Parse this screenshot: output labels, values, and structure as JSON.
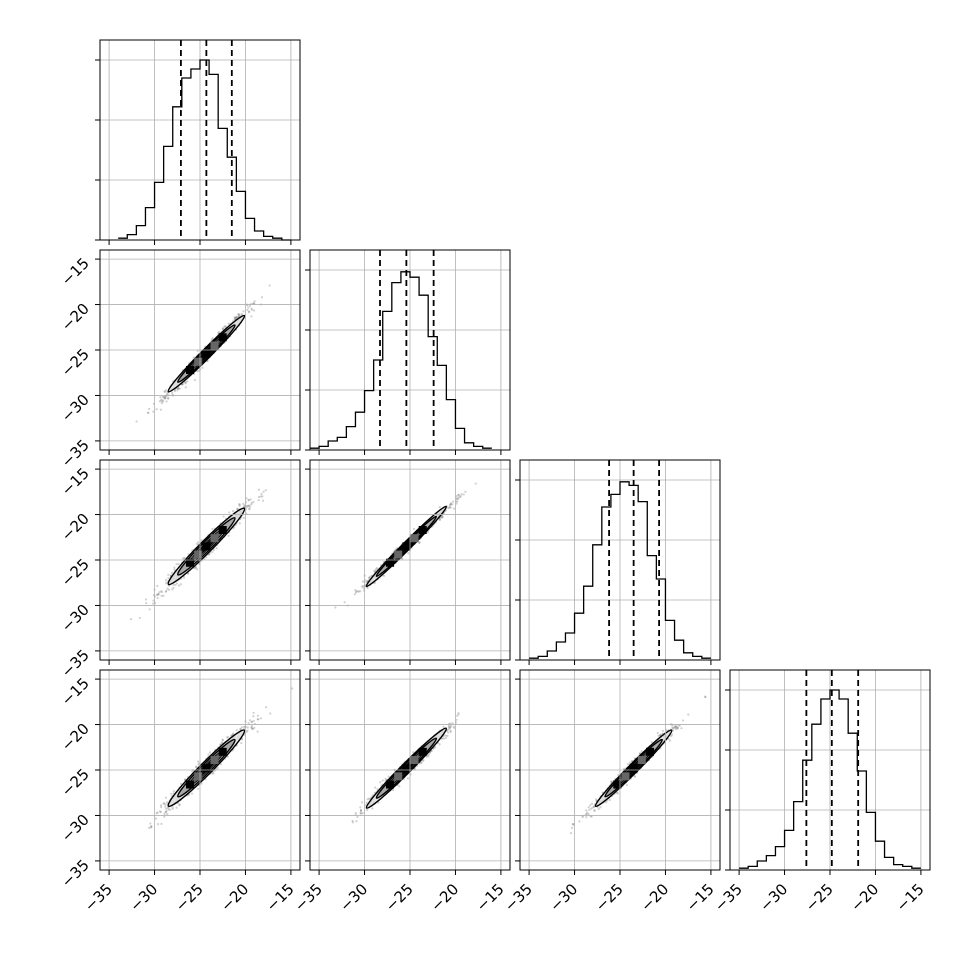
{
  "chart_data": {
    "type": "corner",
    "n_params": 4,
    "axis_range": [
      -36,
      -14
    ],
    "ticks": [
      -35,
      -30,
      -25,
      -20,
      -15
    ],
    "tick_labels": [
      "−35",
      "−30",
      "−25",
      "−20",
      "−15"
    ],
    "grid": true,
    "histograms": [
      {
        "param": 1,
        "bin_edges": [
          -34,
          -33,
          -32,
          -31,
          -30,
          -29,
          -28,
          -27,
          -26,
          -25,
          -24,
          -23,
          -22,
          -21,
          -20,
          -19,
          -18,
          -17,
          -16,
          -15
        ],
        "counts": [
          0.01,
          0.03,
          0.08,
          0.18,
          0.32,
          0.52,
          0.74,
          0.9,
          0.95,
          1.0,
          0.92,
          0.62,
          0.46,
          0.27,
          0.12,
          0.05,
          0.02,
          0.01,
          0.0
        ],
        "quantiles": [
          -27.1,
          -24.3,
          -21.5
        ]
      },
      {
        "param": 2,
        "bin_edges": [
          -36,
          -35,
          -34,
          -33,
          -32,
          -31,
          -30,
          -29,
          -28,
          -27,
          -26,
          -25,
          -24,
          -23,
          -22,
          -21,
          -20,
          -19,
          -18,
          -17,
          -16
        ],
        "counts": [
          0.01,
          0.02,
          0.05,
          0.07,
          0.13,
          0.21,
          0.33,
          0.5,
          0.77,
          0.93,
          0.99,
          0.96,
          0.86,
          0.63,
          0.47,
          0.28,
          0.12,
          0.04,
          0.02,
          0.01
        ],
        "quantiles": [
          -28.3,
          -25.4,
          -22.4
        ]
      },
      {
        "param": 3,
        "bin_edges": [
          -35,
          -34,
          -33,
          -32,
          -31,
          -30,
          -29,
          -28,
          -27,
          -26,
          -25,
          -24,
          -23,
          -22,
          -21,
          -20,
          -19,
          -18,
          -17,
          -16,
          -15
        ],
        "counts": [
          0.01,
          0.02,
          0.05,
          0.1,
          0.15,
          0.26,
          0.41,
          0.64,
          0.85,
          0.92,
          0.99,
          0.97,
          0.88,
          0.58,
          0.45,
          0.22,
          0.11,
          0.04,
          0.02,
          0.01
        ],
        "quantiles": [
          -26.2,
          -23.5,
          -20.7
        ]
      },
      {
        "param": 4,
        "bin_edges": [
          -35,
          -34,
          -33,
          -32,
          -31,
          -30,
          -29,
          -28,
          -27,
          -26,
          -25,
          -24,
          -23,
          -22,
          -21,
          -20,
          -19,
          -18,
          -17,
          -16,
          -15
        ],
        "counts": [
          0.01,
          0.02,
          0.05,
          0.08,
          0.13,
          0.22,
          0.38,
          0.61,
          0.81,
          0.95,
          1.0,
          0.95,
          0.76,
          0.55,
          0.32,
          0.16,
          0.07,
          0.03,
          0.02,
          0.01
        ],
        "quantiles": [
          -27.6,
          -24.8,
          -21.9
        ]
      }
    ],
    "scatter_panels": [
      {
        "x_param": 1,
        "y_param": 2,
        "center": [
          -24.3,
          -25.4
        ],
        "sd": [
          2.1,
          2.2
        ],
        "rho": 0.985
      },
      {
        "x_param": 1,
        "y_param": 3,
        "center": [
          -24.3,
          -23.5
        ],
        "sd": [
          2.1,
          2.1
        ],
        "rho": 0.975
      },
      {
        "x_param": 2,
        "y_param": 3,
        "center": [
          -25.4,
          -23.5
        ],
        "sd": [
          2.2,
          2.1
        ],
        "rho": 0.99
      },
      {
        "x_param": 1,
        "y_param": 4,
        "center": [
          -24.3,
          -24.8
        ],
        "sd": [
          2.1,
          2.1
        ],
        "rho": 0.975
      },
      {
        "x_param": 2,
        "y_param": 4,
        "center": [
          -25.4,
          -24.8
        ],
        "sd": [
          2.2,
          2.1
        ],
        "rho": 0.985
      },
      {
        "x_param": 3,
        "y_param": 4,
        "center": [
          -23.5,
          -24.8
        ],
        "sd": [
          2.1,
          2.1
        ],
        "rho": 0.985
      }
    ],
    "contour_levels_sigma": [
      0.5,
      1.0,
      1.5,
      2.0
    ],
    "colors": {
      "line": "#000000",
      "grid": "#b0b0b0",
      "points": "#7a7a7a",
      "fill_levels": [
        "#000000",
        "#555555",
        "#a0a0a0",
        "#e0e0e0"
      ]
    }
  }
}
